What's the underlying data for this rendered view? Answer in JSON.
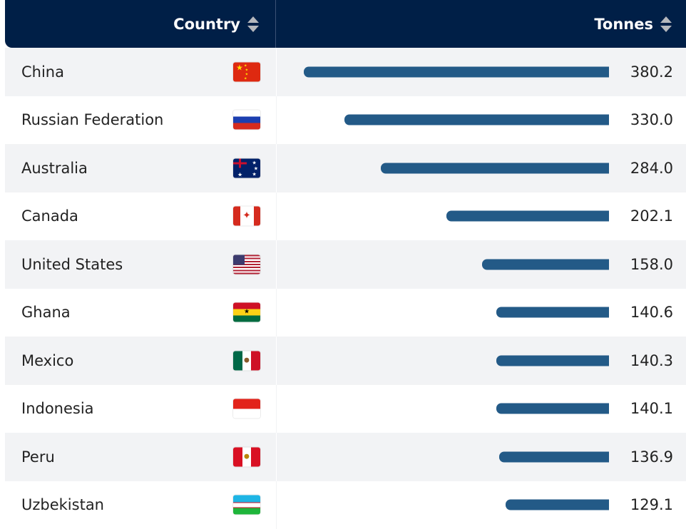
{
  "chart_data": {
    "type": "bar",
    "orientation": "horizontal",
    "columns": [
      "Country",
      "Tonnes"
    ],
    "categories": [
      "China",
      "Russian Federation",
      "Australia",
      "Canada",
      "United States",
      "Ghana",
      "Mexico",
      "Indonesia",
      "Peru",
      "Uzbekistan"
    ],
    "values": [
      380.2,
      330.0,
      284.0,
      202.1,
      158.0,
      140.6,
      140.3,
      140.1,
      136.9,
      129.1
    ],
    "value_labels": [
      "380.2",
      "330.0",
      "284.0",
      "202.1",
      "158.0",
      "140.6",
      "140.3",
      "140.1",
      "136.9",
      "129.1"
    ],
    "flags": [
      "cn",
      "ru",
      "au",
      "ca",
      "us",
      "gh",
      "mx",
      "id",
      "pe",
      "uz"
    ],
    "bar_color": "#235a87",
    "header_color": "#001f47"
  }
}
